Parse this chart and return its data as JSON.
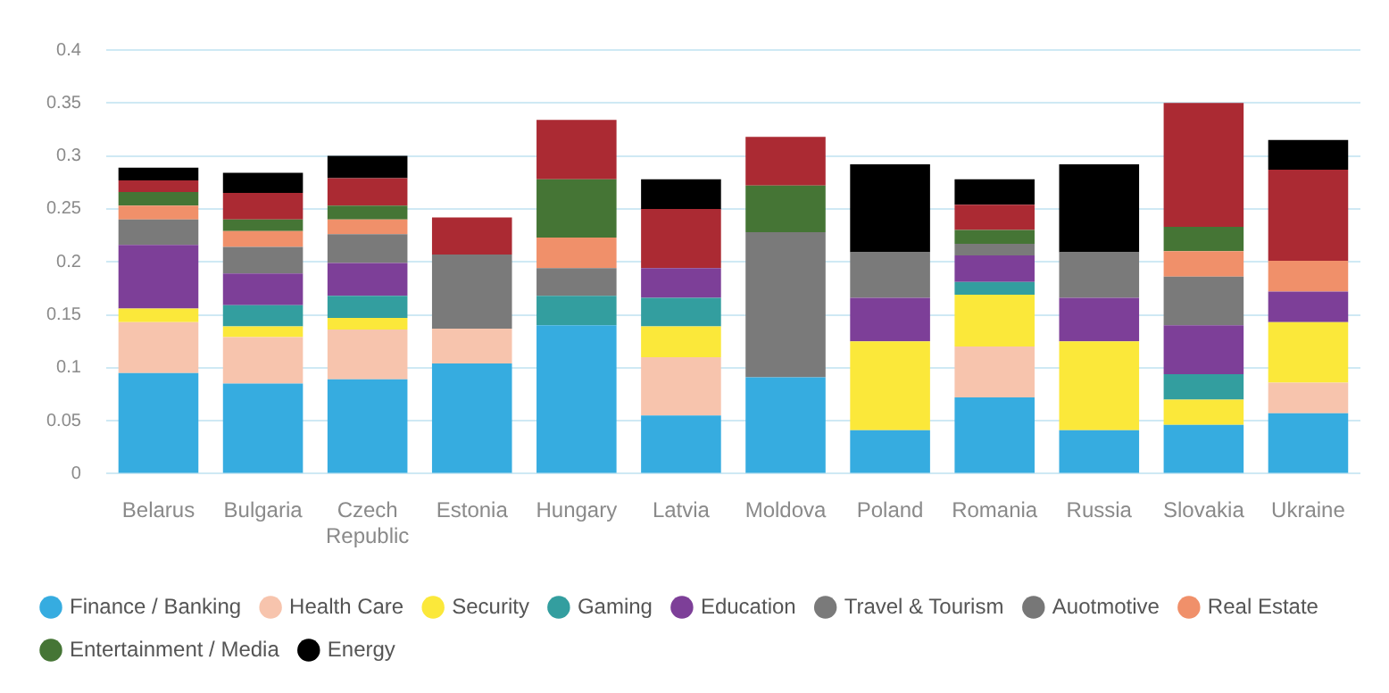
{
  "chart_data": {
    "type": "bar",
    "stacked": true,
    "categories": [
      "Belarus",
      "Bulgaria",
      "Czech Republic",
      "Estonia",
      "Hungary",
      "Latvia",
      "Moldova",
      "Poland",
      "Romania",
      "Russia",
      "Slovakia",
      "Ukraine"
    ],
    "series": [
      {
        "name": "Finance / Banking",
        "color": "#36ace0",
        "values": [
          0.095,
          0.085,
          0.089,
          0.104,
          0.14,
          0.055,
          0.091,
          0.041,
          0.072,
          0.041,
          0.046,
          0.057
        ]
      },
      {
        "name": "Health Care",
        "color": "#f7c4ad",
        "values": [
          0.048,
          0.044,
          0.047,
          0.033,
          null,
          0.055,
          null,
          null,
          0.048,
          null,
          null,
          0.029
        ]
      },
      {
        "name": "Security",
        "color": "#fbe83a",
        "values": [
          0.013,
          0.01,
          0.011,
          null,
          null,
          0.029,
          null,
          0.084,
          0.049,
          0.084,
          0.024,
          0.057
        ]
      },
      {
        "name": "Gaming",
        "color": "#339e9f",
        "values": [
          null,
          0.02,
          0.021,
          null,
          0.028,
          0.027,
          null,
          null,
          0.012,
          null,
          0.024,
          null
        ]
      },
      {
        "name": "Education",
        "color": "#7d3f98",
        "values": [
          0.06,
          0.03,
          0.031,
          null,
          null,
          0.028,
          null,
          0.041,
          0.025,
          0.041,
          0.046,
          0.029
        ]
      },
      {
        "name": "Travel & Tourism",
        "color": "#7a7a7a",
        "values": [
          0.024,
          0.025,
          0.027,
          0.07,
          0.026,
          null,
          0.137,
          0.043,
          0.011,
          0.043,
          0.046,
          null
        ]
      },
      {
        "name": "Auotmotive",
        "color": "#777777",
        "values": [
          null,
          null,
          null,
          null,
          null,
          null,
          null,
          null,
          null,
          null,
          null,
          null
        ]
      },
      {
        "name": "Real Estate",
        "color": "#f0906a",
        "values": [
          0.013,
          0.015,
          0.014,
          null,
          0.029,
          null,
          null,
          null,
          null,
          null,
          0.024,
          0.029
        ]
      },
      {
        "name": "Entertainment / Media",
        "color": "#457535",
        "values": [
          0.013,
          0.011,
          0.013,
          null,
          0.055,
          null,
          0.044,
          null,
          0.013,
          null,
          0.023,
          null
        ]
      },
      {
        "color": "#ab2a33",
        "values": [
          0.011,
          0.025,
          0.026,
          0.035,
          0.056,
          0.056,
          0.046,
          null,
          0.024,
          null,
          0.117,
          0.086
        ]
      },
      {
        "name": "Energy",
        "color": "#000000",
        "values": [
          0.012,
          0.019,
          0.021,
          null,
          null,
          0.028,
          null,
          0.083,
          0.024,
          0.083,
          null,
          0.028
        ]
      }
    ],
    "ylim": [
      0,
      0.4
    ],
    "yticks": [
      0,
      0.05,
      0.1,
      0.15,
      0.2,
      0.25,
      0.3,
      0.35,
      0.4
    ],
    "grid": "y",
    "legend": "bottom"
  }
}
